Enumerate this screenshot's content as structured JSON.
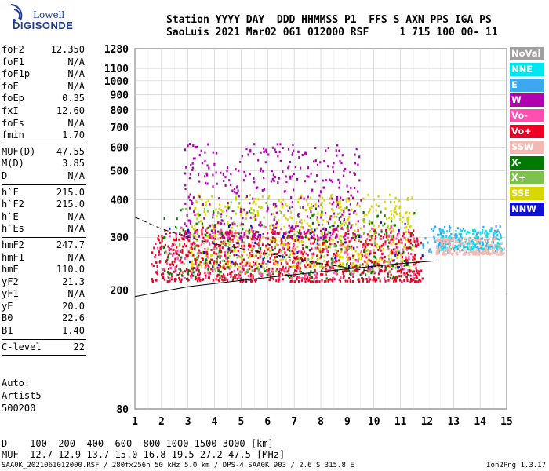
{
  "logo": {
    "line1": "Lowell",
    "line2": "DIGISONDE"
  },
  "header": {
    "line1": "Station YYYY DAY  DDD HHMMSS P1  FFS S AXN PPS IGA PS",
    "line2": "SaoLuis 2021 Mar02 061 012000 RSF     1 715 100 00- 11"
  },
  "params_group1": [
    {
      "name": "foF2",
      "value": "12.350"
    },
    {
      "name": "foF1",
      "value": "N/A"
    },
    {
      "name": "foF1p",
      "value": "N/A"
    },
    {
      "name": "foE",
      "value": "N/A"
    },
    {
      "name": "foEp",
      "value": "0.35"
    },
    {
      "name": "fxI",
      "value": "12.60"
    },
    {
      "name": "foEs",
      "value": "N/A"
    },
    {
      "name": "fmin",
      "value": "1.70"
    }
  ],
  "params_group2": [
    {
      "name": "MUF(D)",
      "value": "47.55"
    },
    {
      "name": "M(D)",
      "value": "3.85"
    },
    {
      "name": "D",
      "value": "N/A"
    }
  ],
  "params_group3": [
    {
      "name": "h`F",
      "value": "215.0"
    },
    {
      "name": "h`F2",
      "value": "215.0"
    },
    {
      "name": "h`E",
      "value": "N/A"
    },
    {
      "name": "h`Es",
      "value": "N/A"
    }
  ],
  "params_group4": [
    {
      "name": "hmF2",
      "value": "247.7"
    },
    {
      "name": "hmF1",
      "value": "N/A"
    },
    {
      "name": "hmE",
      "value": "110.0"
    },
    {
      "name": "yF2",
      "value": "21.3"
    },
    {
      "name": "yF1",
      "value": "N/A"
    },
    {
      "name": "yE",
      "value": "20.0"
    },
    {
      "name": "B0",
      "value": "22.6"
    },
    {
      "name": "B1",
      "value": "1.40"
    }
  ],
  "params_group5": [
    {
      "name": "C-level",
      "value": "22"
    }
  ],
  "auto": {
    "line1": "Auto:",
    "line2": "Artist5",
    "line3": "500200"
  },
  "legend": [
    {
      "label": "NoVal",
      "color": "#a0a0a0"
    },
    {
      "label": "NNE",
      "color": "#00e5ee"
    },
    {
      "label": "E",
      "color": "#3da8f0"
    },
    {
      "label": "W",
      "color": "#b000b0"
    },
    {
      "label": "Vo-",
      "color": "#ff4fb0"
    },
    {
      "label": "Vo+",
      "color": "#ee0022"
    },
    {
      "label": "SSW",
      "color": "#f4b8b0"
    },
    {
      "label": "X-",
      "color": "#007a00"
    },
    {
      "label": "X+",
      "color": "#80c050"
    },
    {
      "label": "SSE",
      "color": "#d8d800"
    },
    {
      "label": "NNW",
      "color": "#1010d0"
    }
  ],
  "bottom": {
    "d_line": "D    100  200  400  600  800 1000 1500 3000 [km]",
    "muf_line": "MUF  12.7 12.9 13.7 15.0 16.8 19.5 27.2 47.5 [MHz]"
  },
  "footer": {
    "left": "SAA0K_2021061012000.RSF / 280fx256h 50 kHz 5.0 km / DPS-4 SAA0K 903 / 2.6 S 315.8 E",
    "right": "Ion2Png 1.3.17"
  },
  "chart_data": {
    "type": "scatter",
    "title": "",
    "xlabel": "",
    "ylabel": "",
    "xlim": [
      1,
      15
    ],
    "ylim": [
      80,
      1280
    ],
    "y_scale": "log",
    "x_ticks": [
      1,
      2,
      3,
      4,
      5,
      6,
      7,
      8,
      9,
      10,
      11,
      12,
      13,
      14,
      15
    ],
    "y_ticks": [
      80,
      200,
      300,
      400,
      500,
      600,
      700,
      800,
      900,
      1000,
      1100,
      1280
    ],
    "grid": true,
    "clusters": [
      {
        "name": "SSE",
        "color": "#d8d800",
        "x_range": [
          3.0,
          11.5
        ],
        "y_range": [
          240,
          420
        ],
        "n": 700
      },
      {
        "name": "Vo+",
        "color": "#ee0022",
        "x_range": [
          1.6,
          11.8
        ],
        "y_range": [
          215,
          320
        ],
        "n": 900
      },
      {
        "name": "Vo-",
        "color": "#ff4fb0",
        "x_range": [
          1.8,
          11.5
        ],
        "y_range": [
          220,
          330
        ],
        "n": 300
      },
      {
        "name": "X-",
        "color": "#007a00",
        "x_range": [
          2.0,
          11.5
        ],
        "y_range": [
          220,
          380
        ],
        "n": 200
      },
      {
        "name": "X+",
        "color": "#80c050",
        "x_range": [
          2.5,
          11.0
        ],
        "y_range": [
          230,
          400
        ],
        "n": 150
      },
      {
        "name": "W",
        "color": "#b000b0",
        "x_range": [
          2.8,
          9.5
        ],
        "y_range": [
          300,
          620
        ],
        "n": 400
      },
      {
        "name": "NNE",
        "color": "#00e5ee",
        "x_range": [
          12.4,
          14.8
        ],
        "y_range": [
          275,
          320
        ],
        "n": 180
      },
      {
        "name": "E",
        "color": "#3da8f0",
        "x_range": [
          11.8,
          14.8
        ],
        "y_range": [
          270,
          330
        ],
        "n": 120
      },
      {
        "name": "SSW",
        "color": "#f4b8b0",
        "x_range": [
          12.3,
          14.9
        ],
        "y_range": [
          265,
          300
        ],
        "n": 200
      },
      {
        "name": "NNW",
        "color": "#1010d0",
        "x_range": [
          2.0,
          12.0
        ],
        "y_range": [
          240,
          340
        ],
        "n": 60
      }
    ],
    "profile_curve_1": {
      "x": [
        1.0,
        3.0,
        5.0,
        7.0,
        9.0,
        11.0,
        12.3
      ],
      "y": [
        190,
        205,
        215,
        225,
        235,
        245,
        250
      ]
    },
    "profile_curve_2": {
      "x": [
        1.0,
        2.0,
        3.0,
        4.0,
        6.0,
        8.0,
        10.0
      ],
      "y": [
        350,
        320,
        300,
        285,
        265,
        245,
        230
      ]
    }
  }
}
